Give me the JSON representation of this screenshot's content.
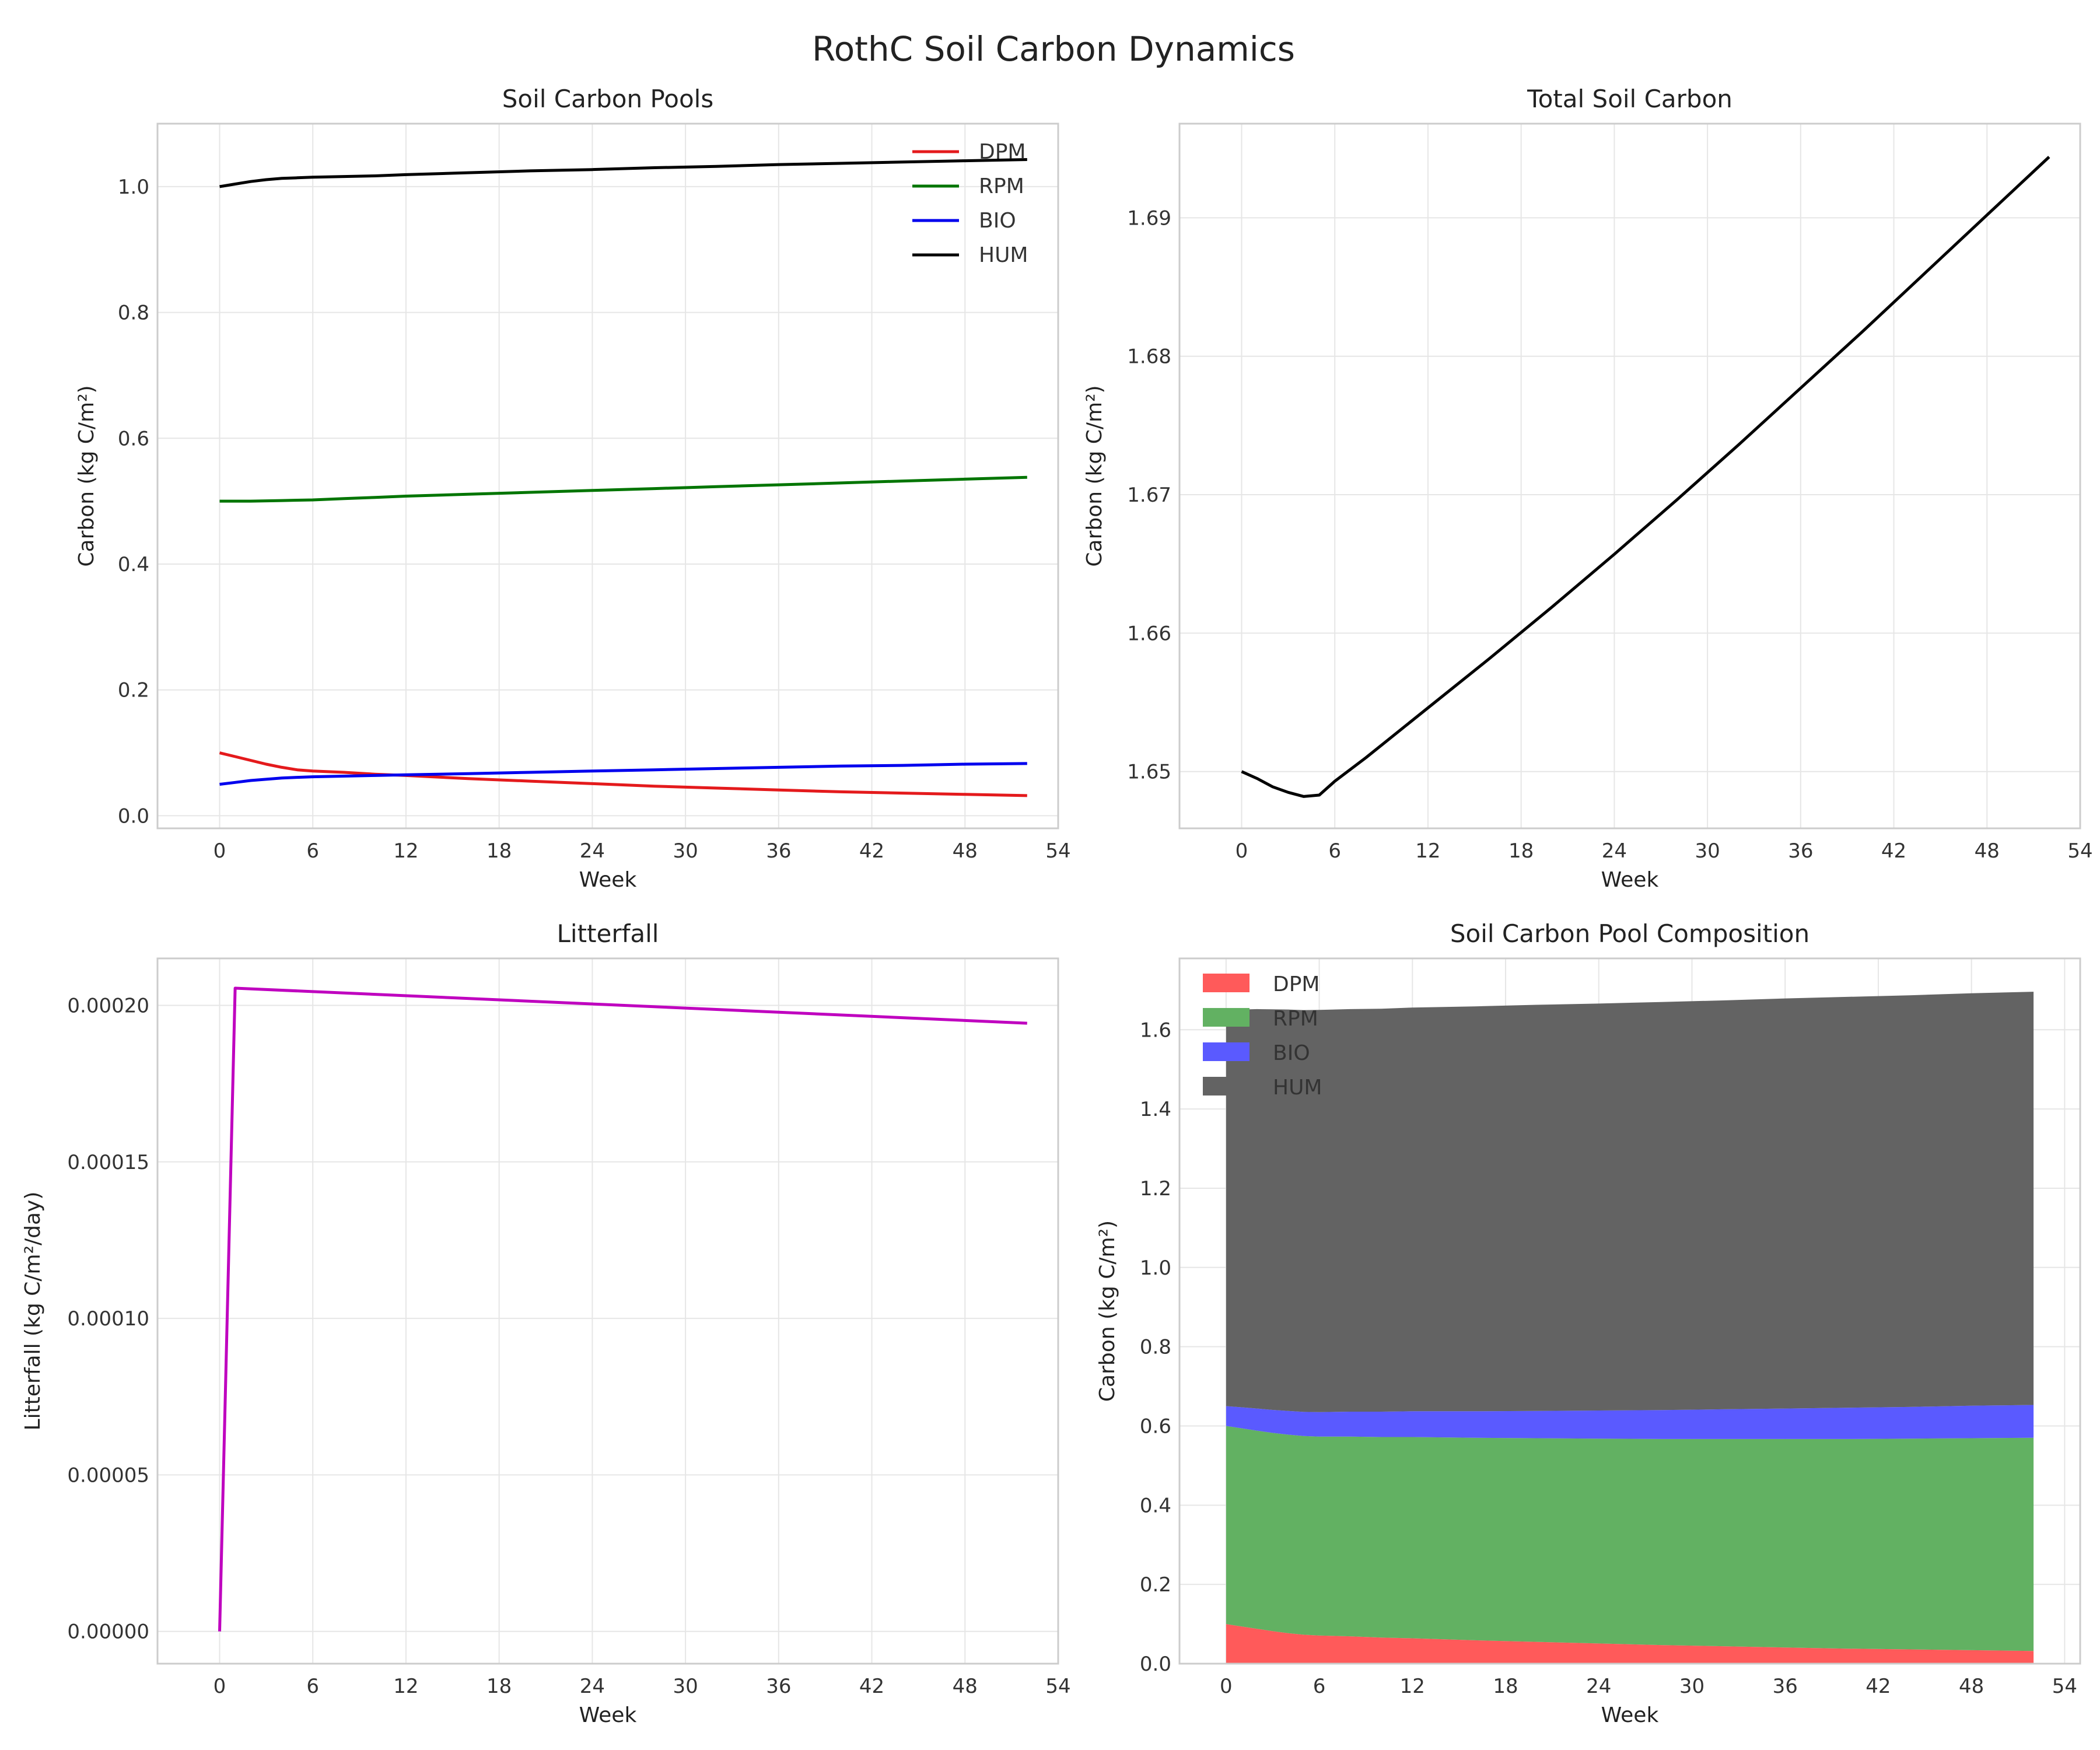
{
  "figure": {
    "title": "RothC Soil Carbon Dynamics"
  },
  "chart_data": [
    {
      "type": "line",
      "title": "Soil Carbon Pools",
      "xlabel": "Week",
      "ylabel": "Carbon (kg C/m²)",
      "xlim": [
        -4,
        54
      ],
      "ylim": [
        -0.02,
        1.1
      ],
      "xticks": [
        0,
        6,
        12,
        18,
        24,
        30,
        36,
        42,
        48,
        54
      ],
      "yticks": [
        0.0,
        0.2,
        0.4,
        0.6,
        0.8,
        1.0
      ],
      "ytick_decimals": 1,
      "grid": true,
      "legend": "top-right",
      "x": [
        0,
        1,
        2,
        3,
        4,
        5,
        6,
        8,
        10,
        12,
        16,
        20,
        24,
        28,
        32,
        36,
        40,
        44,
        48,
        52
      ],
      "series": [
        {
          "name": "DPM",
          "color": "#e41a1c",
          "values": [
            0.1,
            0.094,
            0.088,
            0.082,
            0.077,
            0.073,
            0.071,
            0.069,
            0.066,
            0.064,
            0.059,
            0.055,
            0.051,
            0.047,
            0.044,
            0.041,
            0.038,
            0.036,
            0.034,
            0.032
          ]
        },
        {
          "name": "RPM",
          "color": "#007500",
          "values": [
            0.5,
            0.5,
            0.5,
            0.5005,
            0.501,
            0.5015,
            0.502,
            0.504,
            0.506,
            0.508,
            0.511,
            0.514,
            0.517,
            0.52,
            0.523,
            0.526,
            0.529,
            0.532,
            0.535,
            0.538
          ]
        },
        {
          "name": "BIO",
          "color": "#0000ee",
          "values": [
            0.05,
            0.053,
            0.056,
            0.058,
            0.06,
            0.061,
            0.062,
            0.063,
            0.064,
            0.065,
            0.067,
            0.069,
            0.071,
            0.073,
            0.075,
            0.077,
            0.079,
            0.08,
            0.082,
            0.083
          ]
        },
        {
          "name": "HUM",
          "color": "#000000",
          "values": [
            1.0,
            1.004,
            1.008,
            1.011,
            1.013,
            1.014,
            1.015,
            1.016,
            1.017,
            1.019,
            1.022,
            1.025,
            1.027,
            1.03,
            1.032,
            1.035,
            1.037,
            1.039,
            1.041,
            1.043
          ]
        }
      ]
    },
    {
      "type": "line",
      "title": "Total Soil Carbon",
      "xlabel": "Week",
      "ylabel": "Carbon (kg C/m²)",
      "xlim": [
        -4,
        54
      ],
      "ylim": [
        1.6459,
        1.6968
      ],
      "xticks": [
        0,
        6,
        12,
        18,
        24,
        30,
        36,
        42,
        48,
        54
      ],
      "yticks": [
        1.65,
        1.66,
        1.67,
        1.68,
        1.69
      ],
      "ytick_decimals": 2,
      "grid": true,
      "x": [
        0,
        1,
        2,
        3,
        4,
        5,
        6,
        8,
        12,
        16,
        20,
        24,
        28,
        32,
        36,
        40,
        44,
        48,
        52
      ],
      "series": [
        {
          "color": "#000000",
          "values": [
            1.65,
            1.6495,
            1.6489,
            1.6485,
            1.6482,
            1.6483,
            1.6493,
            1.651,
            1.6546,
            1.6582,
            1.6619,
            1.6657,
            1.6696,
            1.6736,
            1.6777,
            1.6818,
            1.686,
            1.6902,
            1.6944
          ]
        }
      ]
    },
    {
      "type": "line",
      "title": "Litterfall",
      "xlabel": "Week",
      "ylabel": "Litterfall (kg C/m²/day)",
      "xlim": [
        -4,
        54
      ],
      "ylim": [
        -1.03e-05,
        0.000215
      ],
      "xticks": [
        0,
        6,
        12,
        18,
        24,
        30,
        36,
        42,
        48,
        54
      ],
      "yticks": [
        0.0,
        5e-05,
        0.0001,
        0.00015,
        0.0002
      ],
      "ytick_decimals": 5,
      "grid": true,
      "x": [
        0,
        1,
        52
      ],
      "series": [
        {
          "color": "#bf00bf",
          "values": [
            0.0,
            0.0002055,
            0.0001943
          ]
        }
      ]
    },
    {
      "type": "area",
      "stacked": true,
      "title": "Soil Carbon Pool Composition",
      "xlabel": "Week",
      "ylabel": "Carbon (kg C/m²)",
      "xlim": [
        -3,
        55
      ],
      "ylim": [
        0.0,
        1.78
      ],
      "xticks": [
        0,
        6,
        12,
        18,
        24,
        30,
        36,
        42,
        48,
        54
      ],
      "yticks": [
        0.0,
        0.2,
        0.4,
        0.6,
        0.8,
        1.0,
        1.2,
        1.4,
        1.6
      ],
      "ytick_decimals": 1,
      "grid": true,
      "legend": "top-left",
      "x": [
        0,
        1,
        2,
        3,
        4,
        5,
        6,
        8,
        10,
        12,
        16,
        20,
        24,
        28,
        32,
        36,
        40,
        44,
        48,
        52
      ],
      "series": [
        {
          "name": "DPM",
          "color": "#ff5a5a",
          "edge": "#ff0000",
          "values": [
            0.1,
            0.094,
            0.088,
            0.082,
            0.077,
            0.073,
            0.071,
            0.069,
            0.066,
            0.064,
            0.059,
            0.055,
            0.051,
            0.047,
            0.044,
            0.041,
            0.038,
            0.036,
            0.034,
            0.032
          ]
        },
        {
          "name": "RPM",
          "color": "#62b162",
          "edge": "#008000",
          "values": [
            0.5,
            0.5,
            0.5,
            0.5005,
            0.501,
            0.5015,
            0.502,
            0.504,
            0.506,
            0.508,
            0.511,
            0.514,
            0.517,
            0.52,
            0.523,
            0.526,
            0.529,
            0.532,
            0.535,
            0.538
          ]
        },
        {
          "name": "BIO",
          "color": "#5a5aff",
          "edge": "#0000ff",
          "values": [
            0.05,
            0.053,
            0.056,
            0.058,
            0.06,
            0.061,
            0.062,
            0.063,
            0.064,
            0.065,
            0.067,
            0.069,
            0.071,
            0.073,
            0.075,
            0.077,
            0.079,
            0.08,
            0.082,
            0.083
          ]
        },
        {
          "name": "HUM",
          "color": "#636363",
          "edge": "#000000",
          "values": [
            1.0,
            1.004,
            1.008,
            1.011,
            1.013,
            1.014,
            1.015,
            1.016,
            1.017,
            1.019,
            1.022,
            1.025,
            1.027,
            1.03,
            1.032,
            1.035,
            1.037,
            1.039,
            1.041,
            1.043
          ]
        }
      ]
    }
  ]
}
